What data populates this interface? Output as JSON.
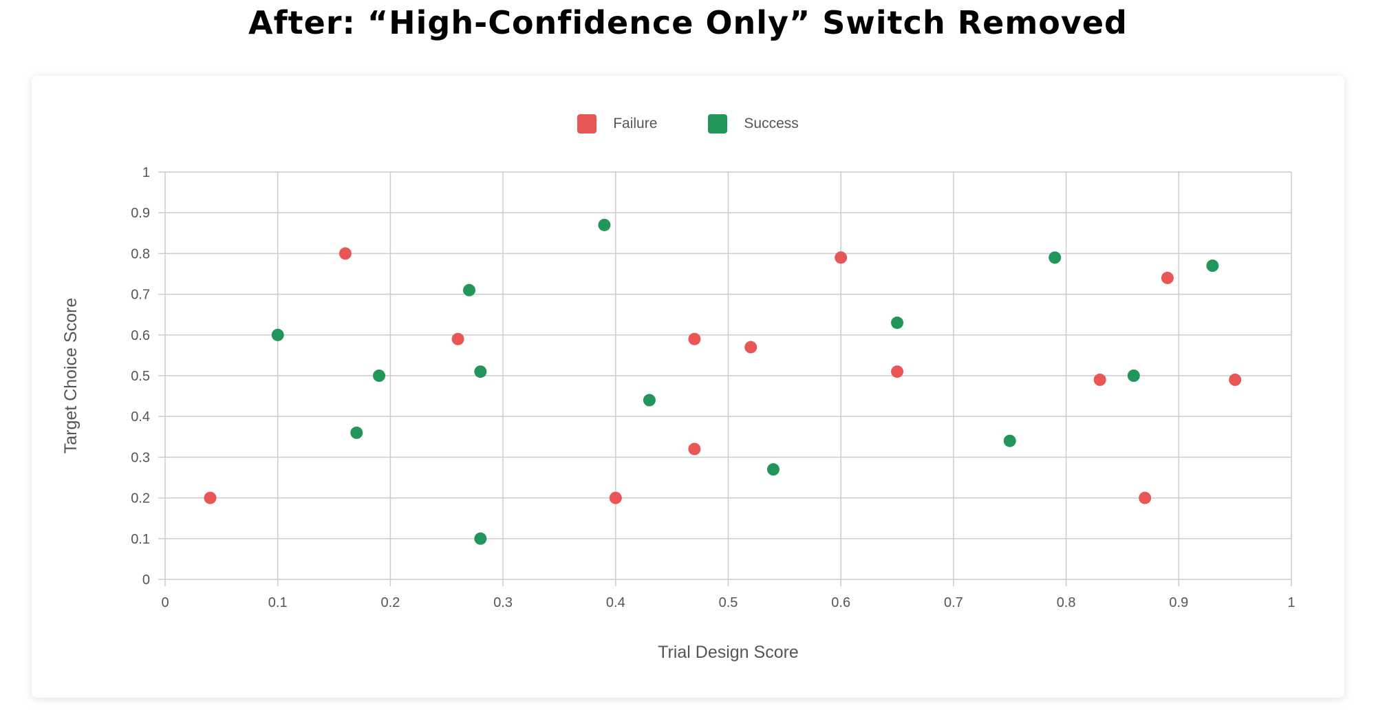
{
  "title": "After: “High-Confidence Only” Switch Removed",
  "chart_data": {
    "type": "scatter",
    "xlabel": "Trial Design Score",
    "ylabel": "Target Choice Score",
    "xlim": [
      0,
      1
    ],
    "ylim": [
      0,
      1
    ],
    "xticks": [
      "0",
      "0.1",
      "0.2",
      "0.3",
      "0.4",
      "0.5",
      "0.6",
      "0.7",
      "0.8",
      "0.9",
      "1"
    ],
    "yticks": [
      "0",
      "0.1",
      "0.2",
      "0.3",
      "0.4",
      "0.5",
      "0.6",
      "0.7",
      "0.8",
      "0.9",
      "1"
    ],
    "grid": true,
    "legend_position": "top-center",
    "series": [
      {
        "name": "Failure",
        "color": "#e85656",
        "points": [
          [
            0.04,
            0.2
          ],
          [
            0.16,
            0.8
          ],
          [
            0.26,
            0.59
          ],
          [
            0.4,
            0.2
          ],
          [
            0.47,
            0.59
          ],
          [
            0.47,
            0.32
          ],
          [
            0.52,
            0.57
          ],
          [
            0.6,
            0.79
          ],
          [
            0.65,
            0.51
          ],
          [
            0.83,
            0.49
          ],
          [
            0.87,
            0.2
          ],
          [
            0.89,
            0.74
          ],
          [
            0.95,
            0.49
          ]
        ]
      },
      {
        "name": "Success",
        "color": "#21955a",
        "points": [
          [
            0.1,
            0.6
          ],
          [
            0.17,
            0.36
          ],
          [
            0.19,
            0.5
          ],
          [
            0.27,
            0.71
          ],
          [
            0.28,
            0.51
          ],
          [
            0.28,
            0.1
          ],
          [
            0.39,
            0.87
          ],
          [
            0.43,
            0.44
          ],
          [
            0.54,
            0.27
          ],
          [
            0.65,
            0.63
          ],
          [
            0.75,
            0.34
          ],
          [
            0.79,
            0.79
          ],
          [
            0.86,
            0.5
          ],
          [
            0.93,
            0.77
          ]
        ]
      }
    ]
  }
}
